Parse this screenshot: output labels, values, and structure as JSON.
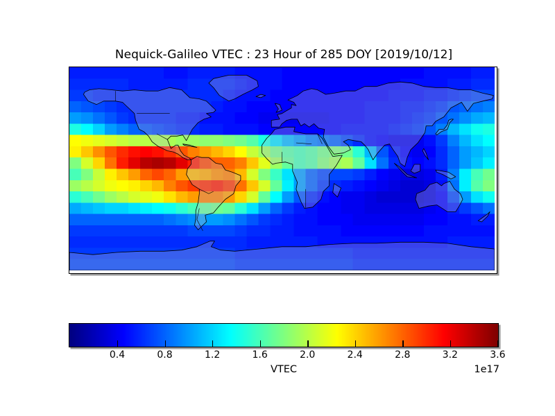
{
  "title": "Nequick-Galileo VTEC : 23 Hour of 285 DOY [2019/10/12]",
  "colorbar": {
    "label": "VTEC",
    "scale": "1e17",
    "ticks": [
      "0.4",
      "0.8",
      "1.2",
      "1.6",
      "2.0",
      "2.4",
      "2.8",
      "3.2",
      "3.6"
    ],
    "vmin": 0,
    "vmax": 3.6,
    "colormap": "jet"
  },
  "chart_data": {
    "type": "heatmap",
    "title": "Nequick-Galileo VTEC : 23 Hour of 285 DOY [2019/10/12]",
    "projection": "equirectangular",
    "lon_range": [
      -180,
      180
    ],
    "lat_range": [
      -90,
      90
    ],
    "lon_step": 10,
    "lat_step": 10,
    "rows_order": "lat 90 (top) to -90 (bottom)",
    "value_scale_label": "1e17",
    "colormap": "jet",
    "vmin": 0,
    "vmax": 3.6,
    "colorbar_label": "VTEC",
    "grid": [
      [
        0.55,
        0.55,
        0.55,
        0.55,
        0.55,
        0.55,
        0.55,
        0.55,
        0.5,
        0.5,
        0.55,
        0.55,
        0.55,
        0.55,
        0.5,
        0.5,
        0.5,
        0.5,
        0.45,
        0.45,
        0.45,
        0.45,
        0.45,
        0.45,
        0.45,
        0.45,
        0.45,
        0.45,
        0.45,
        0.45,
        0.5,
        0.5,
        0.5,
        0.5,
        0.55,
        0.55
      ],
      [
        0.6,
        0.6,
        0.6,
        0.6,
        0.6,
        0.55,
        0.55,
        0.55,
        0.55,
        0.55,
        0.6,
        0.6,
        0.6,
        0.6,
        0.55,
        0.5,
        0.5,
        0.5,
        0.45,
        0.45,
        0.45,
        0.45,
        0.45,
        0.45,
        0.45,
        0.45,
        0.45,
        0.45,
        0.5,
        0.5,
        0.5,
        0.5,
        0.55,
        0.55,
        0.6,
        0.6
      ],
      [
        0.65,
        0.65,
        0.6,
        0.6,
        0.6,
        0.6,
        0.6,
        0.6,
        0.6,
        0.6,
        0.6,
        0.6,
        0.6,
        0.55,
        0.5,
        0.5,
        0.5,
        0.45,
        0.45,
        0.45,
        0.45,
        0.45,
        0.45,
        0.45,
        0.45,
        0.45,
        0.45,
        0.5,
        0.5,
        0.5,
        0.55,
        0.55,
        0.6,
        0.65,
        0.7,
        0.7
      ],
      [
        0.8,
        0.75,
        0.7,
        0.65,
        0.6,
        0.6,
        0.6,
        0.6,
        0.6,
        0.6,
        0.6,
        0.6,
        0.55,
        0.5,
        0.5,
        0.45,
        0.45,
        0.45,
        0.45,
        0.45,
        0.45,
        0.45,
        0.45,
        0.45,
        0.45,
        0.5,
        0.5,
        0.5,
        0.55,
        0.55,
        0.6,
        0.65,
        0.75,
        0.8,
        0.85,
        0.9
      ],
      [
        1.0,
        0.95,
        0.85,
        0.75,
        0.65,
        0.6,
        0.6,
        0.6,
        0.6,
        0.55,
        0.55,
        0.5,
        0.5,
        0.5,
        0.45,
        0.45,
        0.4,
        0.4,
        0.4,
        0.4,
        0.4,
        0.4,
        0.45,
        0.45,
        0.45,
        0.5,
        0.5,
        0.5,
        0.55,
        0.6,
        0.65,
        0.75,
        0.85,
        0.95,
        1.05,
        1.1
      ],
      [
        1.45,
        1.35,
        1.2,
        1.0,
        0.9,
        0.8,
        0.75,
        0.7,
        0.65,
        0.6,
        0.6,
        0.55,
        0.55,
        0.5,
        0.5,
        0.5,
        0.45,
        0.45,
        0.45,
        0.45,
        0.45,
        0.45,
        0.45,
        0.5,
        0.5,
        0.5,
        0.5,
        0.55,
        0.6,
        0.65,
        0.75,
        0.9,
        1.1,
        1.25,
        1.4,
        1.45
      ],
      [
        2.25,
        2.2,
        2.15,
        2.1,
        2.05,
        2.0,
        2.0,
        1.95,
        1.95,
        1.9,
        1.9,
        1.85,
        1.85,
        1.8,
        1.75,
        1.65,
        1.45,
        1.25,
        1.1,
        1.0,
        0.9,
        0.85,
        0.8,
        0.7,
        0.6,
        0.5,
        0.45,
        0.4,
        0.4,
        0.4,
        0.5,
        0.65,
        0.9,
        1.1,
        1.25,
        1.35
      ],
      [
        2.3,
        2.45,
        2.65,
        2.85,
        3.0,
        3.1,
        3.15,
        3.1,
        3.0,
        2.85,
        2.7,
        2.6,
        2.5,
        2.4,
        2.25,
        2.05,
        1.9,
        1.75,
        1.65,
        1.6,
        1.65,
        1.75,
        1.8,
        1.75,
        1.5,
        1.1,
        0.75,
        0.55,
        0.45,
        0.4,
        0.45,
        0.6,
        0.8,
        1.0,
        1.1,
        1.2
      ],
      [
        1.8,
        2.1,
        2.4,
        2.75,
        3.05,
        3.25,
        3.4,
        3.45,
        3.4,
        3.25,
        3.05,
        2.9,
        2.8,
        2.8,
        2.7,
        2.45,
        2.15,
        1.9,
        1.7,
        1.6,
        1.65,
        1.8,
        1.9,
        1.95,
        1.7,
        1.25,
        0.85,
        0.6,
        0.5,
        0.45,
        0.5,
        0.6,
        0.8,
        1.0,
        1.15,
        1.3
      ],
      [
        1.6,
        1.8,
        2.05,
        2.3,
        2.45,
        2.6,
        2.8,
        2.9,
        2.8,
        2.6,
        2.5,
        2.55,
        2.65,
        2.7,
        2.5,
        2.1,
        1.8,
        1.55,
        1.25,
        1.0,
        0.8,
        0.7,
        0.7,
        0.7,
        0.65,
        0.55,
        0.45,
        0.4,
        0.35,
        0.35,
        0.4,
        0.55,
        0.9,
        1.3,
        1.6,
        1.75
      ],
      [
        1.9,
        2.0,
        2.1,
        2.2,
        2.25,
        2.3,
        2.4,
        2.5,
        2.7,
        2.85,
        2.95,
        3.0,
        3.05,
        2.95,
        2.75,
        2.45,
        2.1,
        1.7,
        1.3,
        1.0,
        0.8,
        0.65,
        0.6,
        0.55,
        0.5,
        0.45,
        0.4,
        0.35,
        0.3,
        0.3,
        0.35,
        0.5,
        0.85,
        1.3,
        1.65,
        1.8
      ],
      [
        1.5,
        1.6,
        1.75,
        1.9,
        2.0,
        2.1,
        2.15,
        2.2,
        2.35,
        2.5,
        2.6,
        2.7,
        2.7,
        2.6,
        2.4,
        2.1,
        1.7,
        1.35,
        1.0,
        0.75,
        0.6,
        0.5,
        0.45,
        0.4,
        0.4,
        0.35,
        0.3,
        0.3,
        0.3,
        0.3,
        0.35,
        0.45,
        0.7,
        1.0,
        1.25,
        1.4
      ],
      [
        1.05,
        1.1,
        1.15,
        1.2,
        1.2,
        1.25,
        1.3,
        1.35,
        1.4,
        1.5,
        1.6,
        1.7,
        1.75,
        1.7,
        1.5,
        1.25,
        1.0,
        0.8,
        0.65,
        0.55,
        0.5,
        0.45,
        0.45,
        0.4,
        0.4,
        0.35,
        0.35,
        0.35,
        0.35,
        0.35,
        0.4,
        0.45,
        0.55,
        0.65,
        0.75,
        0.85
      ],
      [
        0.8,
        0.8,
        0.8,
        0.8,
        0.8,
        0.8,
        0.8,
        0.8,
        0.85,
        0.9,
        0.95,
        1.0,
        1.0,
        0.95,
        0.85,
        0.75,
        0.65,
        0.6,
        0.55,
        0.5,
        0.5,
        0.45,
        0.45,
        0.45,
        0.4,
        0.4,
        0.4,
        0.4,
        0.4,
        0.4,
        0.45,
        0.45,
        0.5,
        0.5,
        0.55,
        0.55
      ],
      [
        0.65,
        0.65,
        0.65,
        0.65,
        0.65,
        0.65,
        0.65,
        0.65,
        0.65,
        0.65,
        0.7,
        0.7,
        0.7,
        0.7,
        0.65,
        0.6,
        0.6,
        0.55,
        0.55,
        0.5,
        0.5,
        0.5,
        0.5,
        0.45,
        0.45,
        0.45,
        0.45,
        0.45,
        0.45,
        0.45,
        0.5,
        0.5,
        0.5,
        0.5,
        0.5,
        0.5
      ],
      [
        0.6,
        0.6,
        0.6,
        0.6,
        0.6,
        0.6,
        0.6,
        0.6,
        0.6,
        0.6,
        0.6,
        0.6,
        0.6,
        0.6,
        0.6,
        0.55,
        0.55,
        0.55,
        0.55,
        0.55,
        0.55,
        0.5,
        0.5,
        0.5,
        0.5,
        0.5,
        0.5,
        0.5,
        0.5,
        0.5,
        0.5,
        0.5,
        0.55,
        0.55,
        0.55,
        0.55
      ],
      [
        0.65,
        0.65,
        0.65,
        0.65,
        0.65,
        0.65,
        0.65,
        0.65,
        0.65,
        0.65,
        0.65,
        0.65,
        0.65,
        0.65,
        0.6,
        0.6,
        0.6,
        0.6,
        0.6,
        0.6,
        0.6,
        0.6,
        0.6,
        0.6,
        0.55,
        0.55,
        0.55,
        0.55,
        0.55,
        0.55,
        0.55,
        0.55,
        0.55,
        0.55,
        0.55,
        0.55
      ],
      [
        0.7,
        0.7,
        0.7,
        0.7,
        0.7,
        0.7,
        0.7,
        0.7,
        0.7,
        0.7,
        0.7,
        0.7,
        0.7,
        0.7,
        0.65,
        0.65,
        0.65,
        0.65,
        0.65,
        0.65,
        0.65,
        0.65,
        0.65,
        0.65,
        0.6,
        0.6,
        0.6,
        0.6,
        0.6,
        0.6,
        0.6,
        0.6,
        0.6,
        0.6,
        0.6,
        0.6
      ]
    ]
  }
}
